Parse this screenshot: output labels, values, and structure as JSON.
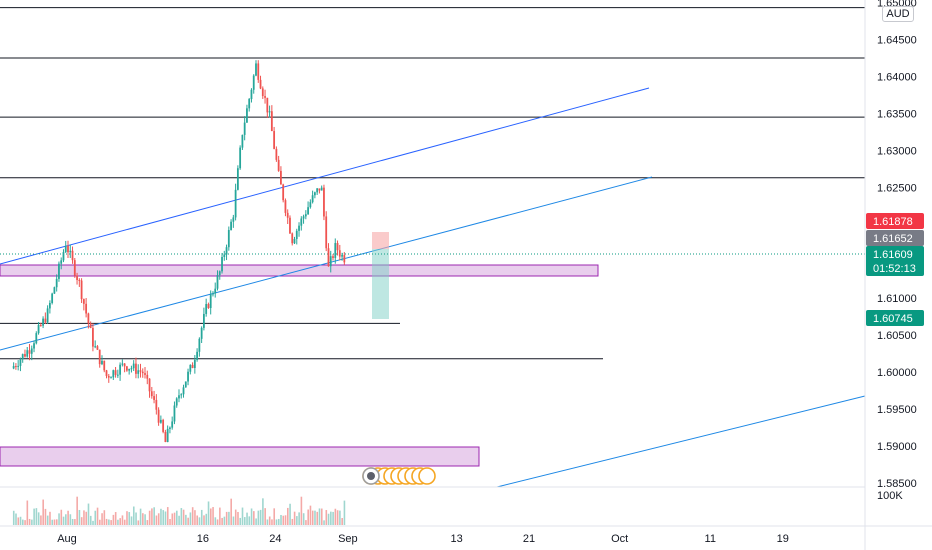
{
  "currency": "AUD",
  "chart_data": {
    "type": "candlestick",
    "price_ticks": [
      "1.65000",
      "1.64500",
      "1.64000",
      "1.63500",
      "1.63000",
      "1.62500",
      "1.62000",
      "1.61500",
      "1.61000",
      "1.60500",
      "1.60000",
      "1.59500",
      "1.59000",
      "1.58500"
    ],
    "volume_tick": "100K",
    "x_ticks": [
      {
        "label": "Aug",
        "day": 0
      },
      {
        "label": "16",
        "day": 15
      },
      {
        "label": "24",
        "day": 23
      },
      {
        "label": "Sep",
        "day": 31
      },
      {
        "label": "13",
        "day": 43
      },
      {
        "label": "21",
        "day": 51
      },
      {
        "label": "Oct",
        "day": 61
      },
      {
        "label": "11",
        "day": 71
      },
      {
        "label": "19",
        "day": 79
      }
    ],
    "ylim": [
      1.5848,
      1.6513
    ],
    "last_price": {
      "value": "1.61609",
      "time": "01:52:13",
      "color": "#089981"
    },
    "price_badges": [
      {
        "value": "1.61878",
        "color": "#f23645"
      },
      {
        "value": "1.61652",
        "color": "#787b86"
      },
      {
        "value": "1.60745",
        "color": "#089981"
      }
    ],
    "horizontal_levels": [
      1.6493,
      1.6425,
      1.6345,
      1.6263,
      1.6066,
      1.6018
    ],
    "key_points": [
      {
        "day": -6,
        "price": 1.6005
      },
      {
        "day": -4,
        "price": 1.6032
      },
      {
        "day": -2,
        "price": 1.608
      },
      {
        "day": 0,
        "price": 1.6175
      },
      {
        "day": 1.5,
        "price": 1.612
      },
      {
        "day": 3,
        "price": 1.604
      },
      {
        "day": 4.5,
        "price": 1.5995
      },
      {
        "day": 6.5,
        "price": 1.601
      },
      {
        "day": 8.5,
        "price": 1.6
      },
      {
        "day": 10,
        "price": 1.595
      },
      {
        "day": 11,
        "price": 1.5905
      },
      {
        "day": 12.5,
        "price": 1.597
      },
      {
        "day": 14,
        "price": 1.601
      },
      {
        "day": 15.5,
        "price": 1.6085
      },
      {
        "day": 17,
        "price": 1.6135
      },
      {
        "day": 18.5,
        "price": 1.6215
      },
      {
        "day": 19.5,
        "price": 1.6325
      },
      {
        "day": 21,
        "price": 1.6415
      },
      {
        "day": 22.5,
        "price": 1.6345
      },
      {
        "day": 23.5,
        "price": 1.6265
      },
      {
        "day": 25,
        "price": 1.618
      },
      {
        "day": 27,
        "price": 1.623
      },
      {
        "day": 28.2,
        "price": 1.6253
      },
      {
        "day": 29,
        "price": 1.614
      },
      {
        "day": 29.8,
        "price": 1.617
      },
      {
        "day": 30.6,
        "price": 1.6155
      }
    ],
    "grid": false
  }
}
